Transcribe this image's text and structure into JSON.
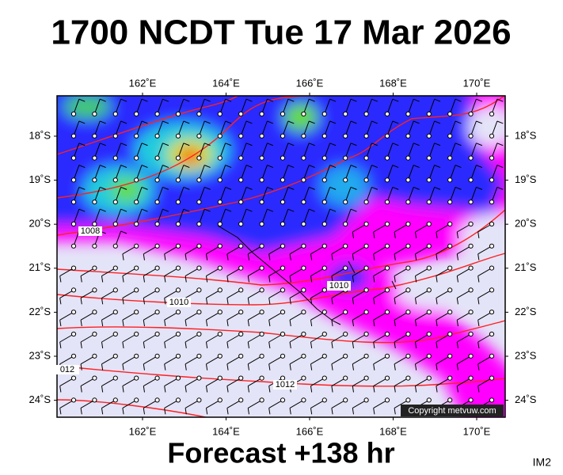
{
  "title": "1700 NCDT Tue 17 Mar 2026",
  "footer": "Forecast +138 hr",
  "corner_label": "IM2",
  "copyright": "Copyright metvuw.com",
  "longitude_labels": [
    "162˚E",
    "164˚E",
    "166˚E",
    "168˚E",
    "170˚E"
  ],
  "latitude_labels": [
    "18˚S",
    "19˚S",
    "20˚S",
    "21˚S",
    "22˚S",
    "23˚S",
    "24˚S"
  ],
  "isobar_labels": [
    "1008",
    "1010",
    "1010",
    "012",
    "1012"
  ]
}
